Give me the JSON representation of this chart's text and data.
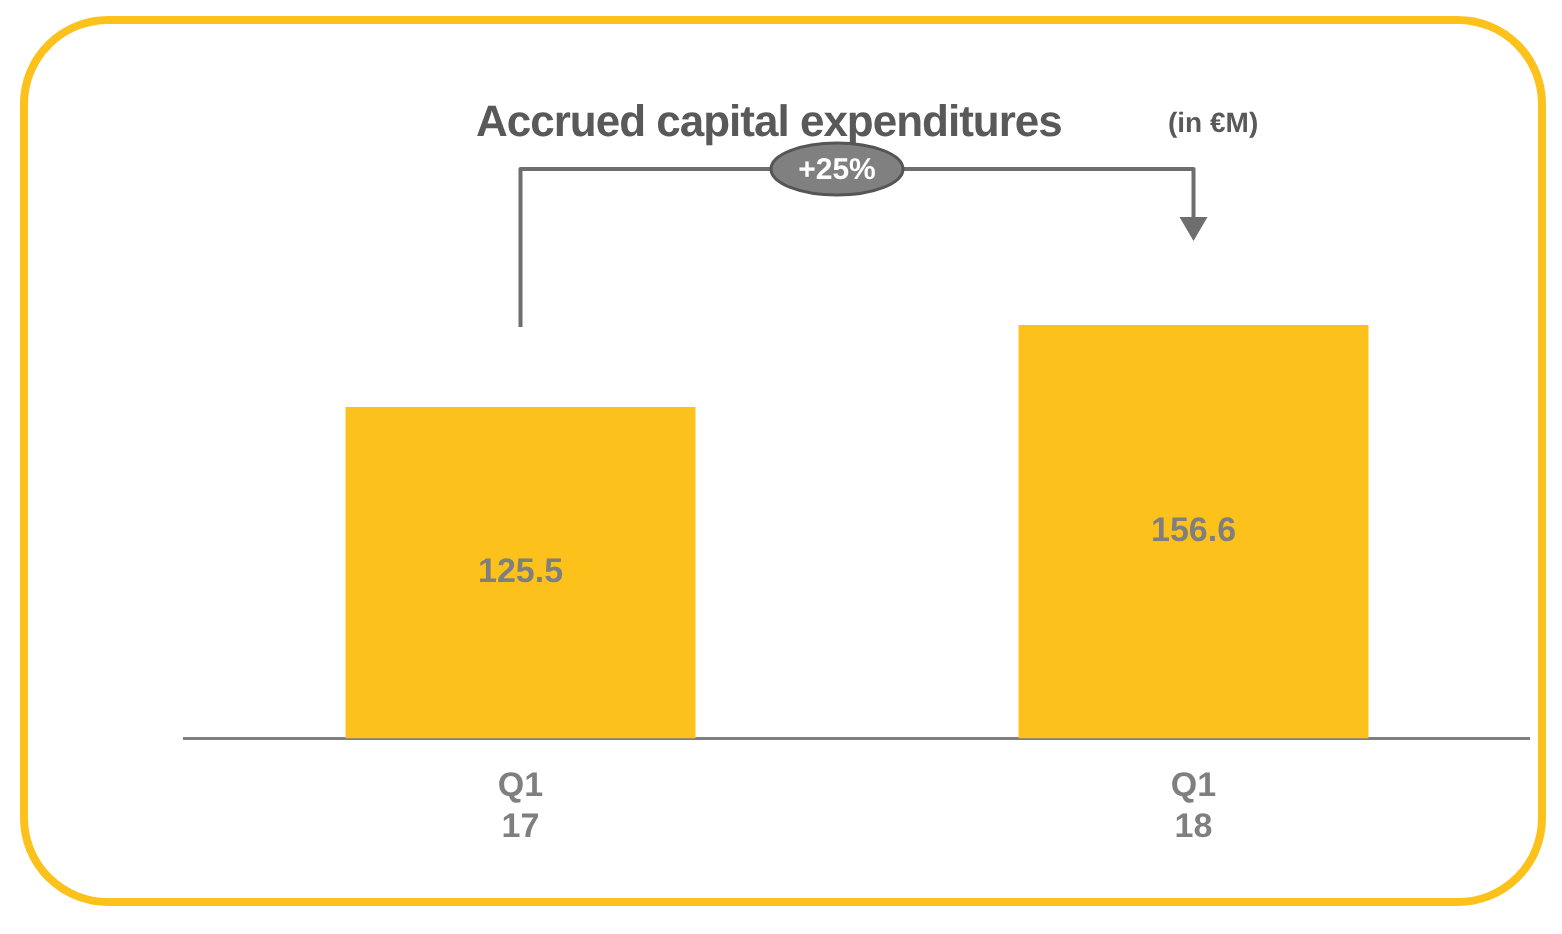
{
  "chart_data": {
    "type": "bar",
    "title": "Accrued capital expenditures",
    "subtitle": "(in €M)",
    "categories": [
      "Q1 17",
      "Q1 18"
    ],
    "values": [
      125.5,
      156.6
    ],
    "color": "#fcc21b",
    "data_labels": true,
    "annotations": [
      "+25%"
    ]
  }
}
